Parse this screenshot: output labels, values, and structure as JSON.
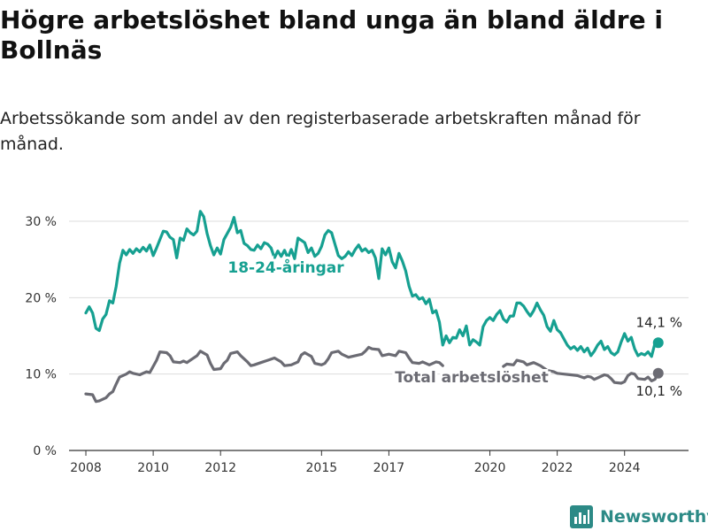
{
  "title": "Högre arbetslöshet bland unga än bland äldre i Bollnäs",
  "subtitle": "Arbetssökande som andel av den registerbaserade arbetskraften månad för månad.",
  "brand": {
    "name": "Newsworthy",
    "icon": "bar-chart-logo-icon"
  },
  "colors": {
    "youth": "#16a091",
    "total": "#6b6b73",
    "grid": "#dddddd",
    "axis": "#333333"
  },
  "chart_data": {
    "type": "line",
    "xlim": [
      2007.5,
      2025.9
    ],
    "ylim": [
      0,
      30
    ],
    "xticks": [
      {
        "value": 2008,
        "label": "2008"
      },
      {
        "value": 2010,
        "label": "2010"
      },
      {
        "value": 2012,
        "label": "2012"
      },
      {
        "value": 2015,
        "label": "2015"
      },
      {
        "value": 2017,
        "label": "2017"
      },
      {
        "value": 2020,
        "label": "2020"
      },
      {
        "value": 2022,
        "label": "2022"
      },
      {
        "value": 2024,
        "label": "2024"
      }
    ],
    "yticks": [
      {
        "value": 0,
        "label": "0 %"
      },
      {
        "value": 10,
        "label": "10 %"
      },
      {
        "value": 20,
        "label": "20 %"
      },
      {
        "value": 30,
        "label": "30 %"
      }
    ],
    "grid": true,
    "series": [
      {
        "name": "18-24-åringar",
        "color": "#16a091",
        "end_label": "14,1 %",
        "points": [
          [
            2008.0,
            18
          ],
          [
            2008.1,
            18.8
          ],
          [
            2008.2,
            18
          ],
          [
            2008.3,
            16
          ],
          [
            2008.4,
            15.7
          ],
          [
            2008.5,
            17.2
          ],
          [
            2008.6,
            17.8
          ],
          [
            2008.7,
            19.6
          ],
          [
            2008.8,
            19.3
          ],
          [
            2008.9,
            21.5
          ],
          [
            2009.0,
            24.5
          ],
          [
            2009.1,
            26.2
          ],
          [
            2009.2,
            25.6
          ],
          [
            2009.3,
            26.3
          ],
          [
            2009.4,
            25.8
          ],
          [
            2009.5,
            26.4
          ],
          [
            2009.6,
            26
          ],
          [
            2009.7,
            26.6
          ],
          [
            2009.8,
            26.1
          ],
          [
            2009.9,
            26.9
          ],
          [
            2010.0,
            25.5
          ],
          [
            2010.1,
            26.5
          ],
          [
            2010.2,
            27.6
          ],
          [
            2010.3,
            28.7
          ],
          [
            2010.4,
            28.6
          ],
          [
            2010.5,
            27.9
          ],
          [
            2010.6,
            27.6
          ],
          [
            2010.7,
            25.2
          ],
          [
            2010.8,
            27.8
          ],
          [
            2010.9,
            27.5
          ],
          [
            2011.0,
            29
          ],
          [
            2011.1,
            28.5
          ],
          [
            2011.2,
            28.2
          ],
          [
            2011.3,
            28.7
          ],
          [
            2011.4,
            31.3
          ],
          [
            2011.5,
            30.6
          ],
          [
            2011.6,
            28.4
          ],
          [
            2011.7,
            26.8
          ],
          [
            2011.8,
            25.6
          ],
          [
            2011.9,
            26.5
          ],
          [
            2012.0,
            25.7
          ],
          [
            2012.1,
            27.6
          ],
          [
            2012.2,
            28.4
          ],
          [
            2012.3,
            29.2
          ],
          [
            2012.4,
            30.5
          ],
          [
            2012.5,
            28.5
          ],
          [
            2012.6,
            28.8
          ],
          [
            2012.7,
            27.1
          ],
          [
            2012.8,
            26.8
          ],
          [
            2012.9,
            26.3
          ],
          [
            2013.0,
            26.2
          ],
          [
            2013.1,
            26.9
          ],
          [
            2013.2,
            26.4
          ],
          [
            2013.3,
            27.2
          ],
          [
            2013.4,
            27
          ],
          [
            2013.5,
            26.5
          ],
          [
            2013.6,
            25.2
          ],
          [
            2013.7,
            26.1
          ],
          [
            2013.8,
            25.4
          ],
          [
            2013.9,
            26.2
          ],
          [
            2014.0,
            25.2
          ],
          [
            2014.1,
            26.3
          ],
          [
            2014.2,
            25.1
          ],
          [
            2014.3,
            27.8
          ],
          [
            2014.4,
            27.5
          ],
          [
            2014.5,
            27.2
          ],
          [
            2014.6,
            25.9
          ],
          [
            2014.7,
            26.5
          ],
          [
            2014.8,
            25.4
          ],
          [
            2014.9,
            25.8
          ],
          [
            2015.0,
            26.7
          ],
          [
            2015.1,
            28.2
          ],
          [
            2015.2,
            28.8
          ],
          [
            2015.3,
            28.5
          ],
          [
            2015.4,
            27
          ],
          [
            2015.5,
            25.5
          ],
          [
            2015.6,
            25.1
          ],
          [
            2015.7,
            25.4
          ],
          [
            2015.8,
            26
          ],
          [
            2015.9,
            25.5
          ],
          [
            2016.0,
            26.3
          ],
          [
            2016.1,
            26.9
          ],
          [
            2016.2,
            26.1
          ],
          [
            2016.3,
            26.4
          ],
          [
            2016.4,
            25.9
          ],
          [
            2016.5,
            26.2
          ],
          [
            2016.6,
            25.2
          ],
          [
            2016.7,
            22.5
          ],
          [
            2016.8,
            26.4
          ],
          [
            2016.9,
            25.6
          ],
          [
            2017.0,
            26.5
          ],
          [
            2017.1,
            24.7
          ],
          [
            2017.2,
            23.9
          ],
          [
            2017.3,
            25.8
          ],
          [
            2017.4,
            24.8
          ],
          [
            2017.5,
            23.5
          ],
          [
            2017.6,
            21.5
          ],
          [
            2017.7,
            20.2
          ],
          [
            2017.8,
            20.4
          ],
          [
            2017.9,
            19.8
          ],
          [
            2018.0,
            20
          ],
          [
            2018.1,
            19.2
          ],
          [
            2018.2,
            19.8
          ],
          [
            2018.3,
            18
          ],
          [
            2018.4,
            18.3
          ],
          [
            2018.5,
            16.8
          ],
          [
            2018.6,
            13.8
          ],
          [
            2018.7,
            15
          ],
          [
            2018.8,
            14.1
          ],
          [
            2018.9,
            14.8
          ],
          [
            2019.0,
            14.7
          ],
          [
            2019.1,
            15.8
          ],
          [
            2019.2,
            15
          ],
          [
            2019.3,
            16.3
          ],
          [
            2019.4,
            13.8
          ],
          [
            2019.5,
            14.5
          ],
          [
            2019.6,
            14.2
          ],
          [
            2019.7,
            13.8
          ],
          [
            2019.8,
            16.2
          ],
          [
            2019.9,
            17
          ],
          [
            2020.0,
            17.4
          ],
          [
            2020.1,
            17
          ],
          [
            2020.2,
            17.8
          ],
          [
            2020.3,
            18.3
          ],
          [
            2020.4,
            17.2
          ],
          [
            2020.5,
            16.8
          ],
          [
            2020.6,
            17.6
          ],
          [
            2020.7,
            17.6
          ],
          [
            2020.8,
            19.3
          ],
          [
            2020.9,
            19.3
          ],
          [
            2021.0,
            18.9
          ],
          [
            2021.1,
            18.2
          ],
          [
            2021.2,
            17.6
          ],
          [
            2021.3,
            18.3
          ],
          [
            2021.4,
            19.3
          ],
          [
            2021.5,
            18.4
          ],
          [
            2021.6,
            17.7
          ],
          [
            2021.7,
            16.2
          ],
          [
            2021.8,
            15.6
          ],
          [
            2021.9,
            17
          ],
          [
            2022.0,
            15.8
          ],
          [
            2022.1,
            15.4
          ],
          [
            2022.2,
            14.6
          ],
          [
            2022.3,
            13.8
          ],
          [
            2022.4,
            13.3
          ],
          [
            2022.5,
            13.6
          ],
          [
            2022.6,
            13.1
          ],
          [
            2022.7,
            13.6
          ],
          [
            2022.8,
            12.9
          ],
          [
            2022.9,
            13.4
          ],
          [
            2023.0,
            12.4
          ],
          [
            2023.1,
            13
          ],
          [
            2023.2,
            13.8
          ],
          [
            2023.3,
            14.3
          ],
          [
            2023.4,
            13.2
          ],
          [
            2023.5,
            13.6
          ],
          [
            2023.6,
            12.8
          ],
          [
            2023.7,
            12.5
          ],
          [
            2023.8,
            12.9
          ],
          [
            2023.9,
            14.2
          ],
          [
            2024.0,
            15.3
          ],
          [
            2024.1,
            14.3
          ],
          [
            2024.2,
            14.8
          ],
          [
            2024.3,
            13.3
          ],
          [
            2024.4,
            12.4
          ],
          [
            2024.5,
            12.7
          ],
          [
            2024.6,
            12.5
          ],
          [
            2024.7,
            12.9
          ],
          [
            2024.8,
            12.3
          ],
          [
            2024.9,
            14
          ],
          [
            2025.0,
            14.1
          ]
        ]
      },
      {
        "name": "Total arbetslöshet",
        "color": "#6b6b73",
        "end_label": "10,1 %",
        "points": [
          [
            2008.0,
            7.4
          ],
          [
            2008.2,
            7.3
          ],
          [
            2008.3,
            6.4
          ],
          [
            2008.4,
            6.5
          ],
          [
            2008.6,
            6.9
          ],
          [
            2008.7,
            7.4
          ],
          [
            2008.8,
            7.7
          ],
          [
            2008.9,
            8.7
          ],
          [
            2009.0,
            9.6
          ],
          [
            2009.2,
            10
          ],
          [
            2009.3,
            10.3
          ],
          [
            2009.4,
            10.1
          ],
          [
            2009.6,
            9.9
          ],
          [
            2009.8,
            10.3
          ],
          [
            2009.9,
            10.2
          ],
          [
            2010.0,
            11
          ],
          [
            2010.1,
            11.8
          ],
          [
            2010.2,
            12.9
          ],
          [
            2010.4,
            12.8
          ],
          [
            2010.5,
            12.4
          ],
          [
            2010.6,
            11.6
          ],
          [
            2010.8,
            11.5
          ],
          [
            2010.9,
            11.7
          ],
          [
            2011.0,
            11.5
          ],
          [
            2011.1,
            11.8
          ],
          [
            2011.3,
            12.4
          ],
          [
            2011.4,
            13
          ],
          [
            2011.6,
            12.5
          ],
          [
            2011.7,
            11.4
          ],
          [
            2011.8,
            10.6
          ],
          [
            2012.0,
            10.7
          ],
          [
            2012.1,
            11.4
          ],
          [
            2012.2,
            11.8
          ],
          [
            2012.3,
            12.7
          ],
          [
            2012.5,
            12.9
          ],
          [
            2012.6,
            12.4
          ],
          [
            2012.8,
            11.6
          ],
          [
            2012.9,
            11.1
          ],
          [
            2013.0,
            11.2
          ],
          [
            2013.2,
            11.5
          ],
          [
            2013.4,
            11.8
          ],
          [
            2013.6,
            12.1
          ],
          [
            2013.8,
            11.6
          ],
          [
            2013.9,
            11.1
          ],
          [
            2014.1,
            11.2
          ],
          [
            2014.3,
            11.6
          ],
          [
            2014.4,
            12.5
          ],
          [
            2014.5,
            12.8
          ],
          [
            2014.7,
            12.3
          ],
          [
            2014.8,
            11.4
          ],
          [
            2015.0,
            11.2
          ],
          [
            2015.1,
            11.4
          ],
          [
            2015.2,
            12
          ],
          [
            2015.3,
            12.8
          ],
          [
            2015.5,
            13
          ],
          [
            2015.6,
            12.6
          ],
          [
            2015.8,
            12.2
          ],
          [
            2016.0,
            12.4
          ],
          [
            2016.2,
            12.6
          ],
          [
            2016.3,
            13
          ],
          [
            2016.4,
            13.5
          ],
          [
            2016.5,
            13.3
          ],
          [
            2016.7,
            13.2
          ],
          [
            2016.8,
            12.4
          ],
          [
            2017.0,
            12.6
          ],
          [
            2017.2,
            12.4
          ],
          [
            2017.3,
            13
          ],
          [
            2017.5,
            12.8
          ],
          [
            2017.6,
            12.1
          ],
          [
            2017.7,
            11.5
          ],
          [
            2017.9,
            11.4
          ],
          [
            2018.0,
            11.6
          ],
          [
            2018.2,
            11.2
          ],
          [
            2018.4,
            11.6
          ],
          [
            2018.5,
            11.5
          ],
          [
            2018.6,
            11.1
          ]
        ],
        "points_2": [
          [
            2020.4,
            11
          ],
          [
            2020.5,
            11.3
          ],
          [
            2020.7,
            11.2
          ],
          [
            2020.8,
            11.8
          ],
          [
            2021.0,
            11.6
          ],
          [
            2021.1,
            11.2
          ],
          [
            2021.3,
            11.5
          ],
          [
            2021.5,
            11.1
          ],
          [
            2021.7,
            10.5
          ],
          [
            2021.9,
            10.3
          ],
          [
            2022.0,
            10.1
          ],
          [
            2022.2,
            10
          ],
          [
            2022.4,
            9.9
          ],
          [
            2022.6,
            9.8
          ],
          [
            2022.8,
            9.5
          ],
          [
            2022.9,
            9.7
          ],
          [
            2023.0,
            9.6
          ],
          [
            2023.1,
            9.3
          ],
          [
            2023.2,
            9.5
          ],
          [
            2023.4,
            9.9
          ],
          [
            2023.5,
            9.8
          ],
          [
            2023.6,
            9.4
          ],
          [
            2023.7,
            8.9
          ],
          [
            2023.9,
            8.8
          ],
          [
            2024.0,
            9
          ],
          [
            2024.1,
            9.8
          ],
          [
            2024.2,
            10.1
          ],
          [
            2024.3,
            10
          ],
          [
            2024.4,
            9.4
          ],
          [
            2024.6,
            9.3
          ],
          [
            2024.7,
            9.6
          ],
          [
            2024.8,
            9.1
          ],
          [
            2024.9,
            9.3
          ],
          [
            2025.0,
            10.1
          ]
        ]
      }
    ]
  }
}
